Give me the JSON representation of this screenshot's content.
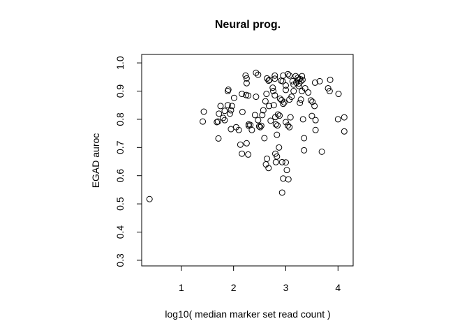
{
  "chart_data": {
    "type": "scatter",
    "title": "Neural prog.",
    "x_label": "log10( median marker set read count )",
    "y_label": "EGAD auroc",
    "xlim": [
      0.24,
      4.29
    ],
    "ylim": [
      0.28,
      1.03
    ],
    "xticks": [
      1,
      2,
      3,
      4
    ],
    "yticks": [
      {
        "value": 0.3,
        "label": "0.3"
      },
      {
        "value": 0.4,
        "label": "0.4"
      },
      {
        "value": 0.5,
        "label": "0.5"
      },
      {
        "value": 0.6,
        "label": "0.6"
      },
      {
        "value": 0.7,
        "label": "0.7"
      },
      {
        "value": 0.8,
        "label": "0.8"
      },
      {
        "value": 0.9,
        "label": "0.9"
      },
      {
        "value": 1.0,
        "label": "1.0"
      }
    ],
    "color": "#000000",
    "x": [
      0.39,
      1.43,
      1.41,
      1.7,
      1.68,
      1.71,
      1.75,
      1.72,
      1.8,
      1.83,
      1.83,
      1.89,
      1.9,
      1.89,
      1.93,
      1.95,
      1.97,
      2.01,
      1.95,
      2.05,
      2.1,
      2.13,
      2.16,
      2.16,
      2.17,
      2.23,
      2.25,
      2.25,
      2.24,
      2.28,
      2.25,
      2.28,
      2.29,
      2.32,
      2.29,
      2.35,
      2.41,
      2.43,
      2.43,
      2.47,
      2.47,
      2.49,
      2.53,
      2.51,
      2.55,
      2.57,
      2.59,
      2.61,
      2.63,
      2.64,
      2.67,
      2.69,
      2.62,
      2.64,
      2.67,
      2.68,
      2.71,
      2.75,
      2.76,
      2.79,
      2.77,
      2.79,
      2.79,
      2.8,
      2.81,
      2.84,
      2.83,
      2.8,
      2.83,
      2.81,
      2.87,
      2.85,
      2.88,
      2.89,
      2.92,
      2.91,
      2.94,
      2.93,
      2.95,
      2.95,
      2.97,
      2.95,
      2.93,
      3.0,
      3.0,
      3.0,
      3.04,
      3.07,
      3.0,
      3.02,
      3.05,
      3.04,
      3.07,
      3.07,
      3.11,
      3.09,
      3.13,
      3.15,
      3.15,
      3.19,
      3.23,
      3.27,
      3.24,
      3.31,
      3.29,
      3.25,
      3.2,
      3.25,
      3.31,
      3.29,
      3.27,
      3.32,
      3.33,
      3.35,
      3.35,
      3.37,
      3.43,
      3.48,
      3.51,
      3.5,
      3.55,
      3.57,
      3.56,
      3.57,
      3.65,
      3.69,
      3.81,
      3.84,
      3.85,
      4.01,
      4.0,
      4.12,
      4.12
    ],
    "y": [
      0.517,
      0.827,
      0.792,
      0.792,
      0.79,
      0.732,
      0.847,
      0.82,
      0.805,
      0.797,
      0.83,
      0.9,
      0.905,
      0.85,
      0.82,
      0.832,
      0.847,
      0.876,
      0.765,
      0.772,
      0.762,
      0.71,
      0.678,
      0.89,
      0.826,
      0.955,
      0.945,
      0.928,
      0.886,
      0.884,
      0.715,
      0.675,
      0.777,
      0.78,
      0.782,
      0.762,
      0.815,
      0.88,
      0.965,
      0.958,
      0.797,
      0.775,
      0.777,
      0.772,
      0.815,
      0.832,
      0.733,
      0.864,
      0.89,
      0.945,
      0.937,
      0.94,
      0.64,
      0.66,
      0.627,
      0.847,
      0.795,
      0.912,
      0.9,
      0.885,
      0.85,
      0.955,
      0.944,
      0.808,
      0.782,
      0.778,
      0.745,
      0.678,
      0.668,
      0.648,
      0.7,
      0.817,
      0.813,
      0.873,
      0.868,
      0.937,
      0.935,
      0.648,
      0.955,
      0.855,
      0.86,
      0.59,
      0.54,
      0.92,
      0.904,
      0.79,
      0.778,
      0.772,
      0.647,
      0.62,
      0.587,
      0.96,
      0.955,
      0.87,
      0.88,
      0.807,
      0.935,
      0.923,
      0.9,
      0.953,
      0.947,
      0.943,
      0.94,
      0.953,
      0.935,
      0.927,
      0.93,
      0.918,
      0.9,
      0.87,
      0.858,
      0.94,
      0.8,
      0.733,
      0.69,
      0.91,
      0.895,
      0.867,
      0.862,
      0.812,
      0.847,
      0.797,
      0.93,
      0.762,
      0.935,
      0.685,
      0.91,
      0.9,
      0.94,
      0.89,
      0.8,
      0.807,
      0.757
    ]
  }
}
